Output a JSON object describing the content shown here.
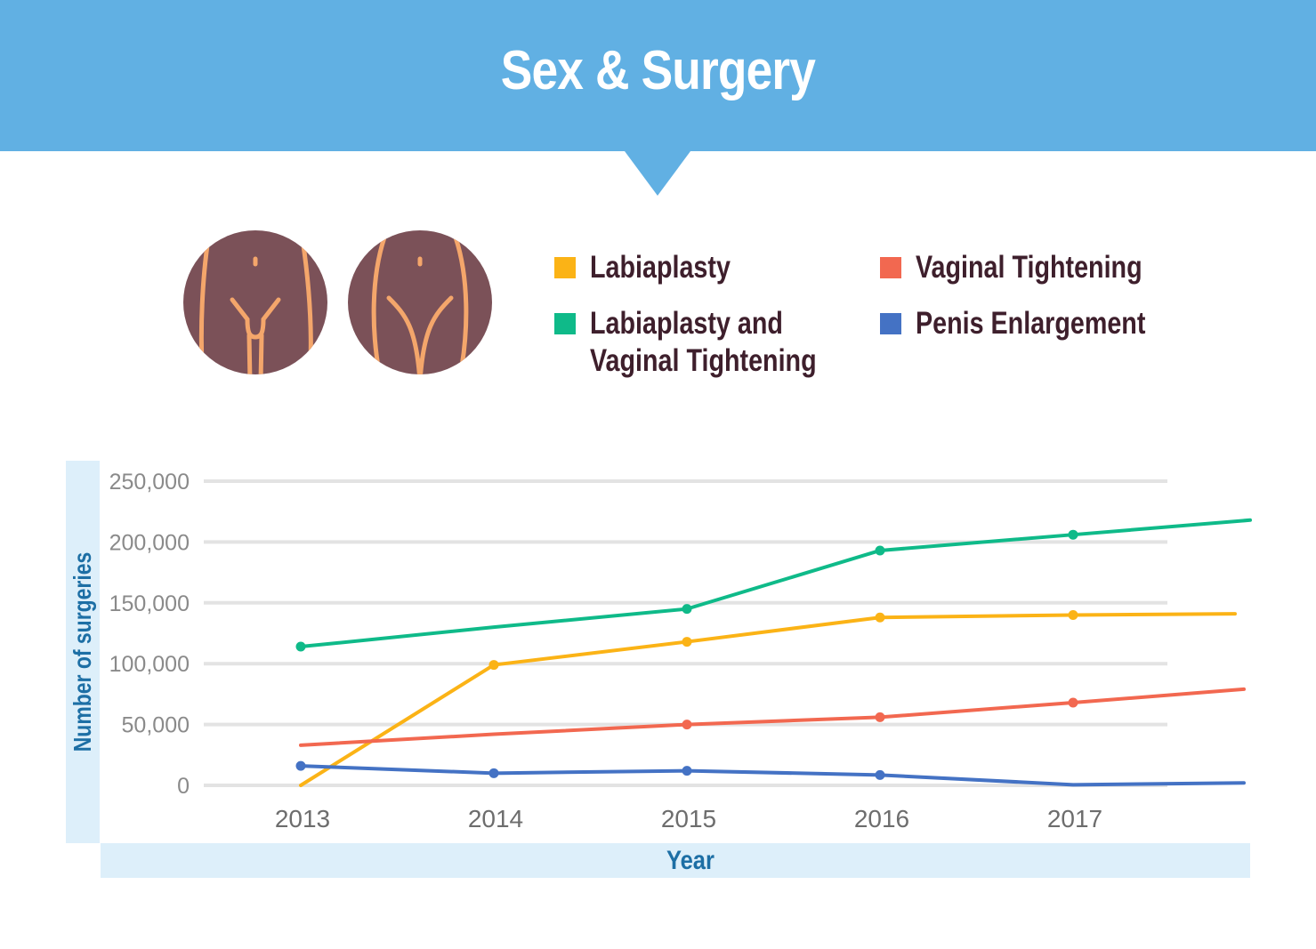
{
  "title": "Sex & Surgery",
  "colors": {
    "banner": "#61b0e3",
    "illustration_fill": "#7b5158",
    "illustration_line": "#f4a66b",
    "axis_title": "#1d6fa5",
    "legend_text": "#3e1f2c"
  },
  "legend": [
    {
      "label": "Labiaplasty",
      "color": "#fbb316"
    },
    {
      "label": "Vaginal Tightening",
      "color": "#f26850"
    },
    {
      "label": "Labiaplasty and\nVaginal Tightening",
      "color": "#0fba89"
    },
    {
      "label": "Penis Enlargement",
      "color": "#4472c4"
    }
  ],
  "chart_data": {
    "type": "line",
    "x": [
      "2013",
      "2014",
      "2015",
      "2016",
      "2017",
      ""
    ],
    "xlabel": "Year",
    "ylabel": "Number of surgeries",
    "ylim": [
      0,
      250000
    ],
    "yticks": [
      0,
      50000,
      100000,
      150000,
      200000,
      250000
    ],
    "ytick_labels": [
      "0",
      "50,000",
      "100,000",
      "150,000",
      "200,000",
      "250,000"
    ],
    "grid": true,
    "series": [
      {
        "name": "Labiaplasty and Vaginal Tightening",
        "color": "#0fba89",
        "values": [
          114000,
          130000,
          145000,
          193000,
          206000,
          218000
        ]
      },
      {
        "name": "Labiaplasty",
        "color": "#fbb316",
        "values": [
          0,
          99000,
          118000,
          138000,
          140000,
          141000
        ]
      },
      {
        "name": "Vaginal Tightening",
        "color": "#f26850",
        "values": [
          33000,
          42000,
          50000,
          56000,
          68000,
          79000
        ]
      },
      {
        "name": "Penis Enlargement",
        "color": "#4472c4",
        "values": [
          16000,
          10000,
          12000,
          8500,
          500,
          2000
        ]
      }
    ],
    "markers_through_index": 4
  }
}
